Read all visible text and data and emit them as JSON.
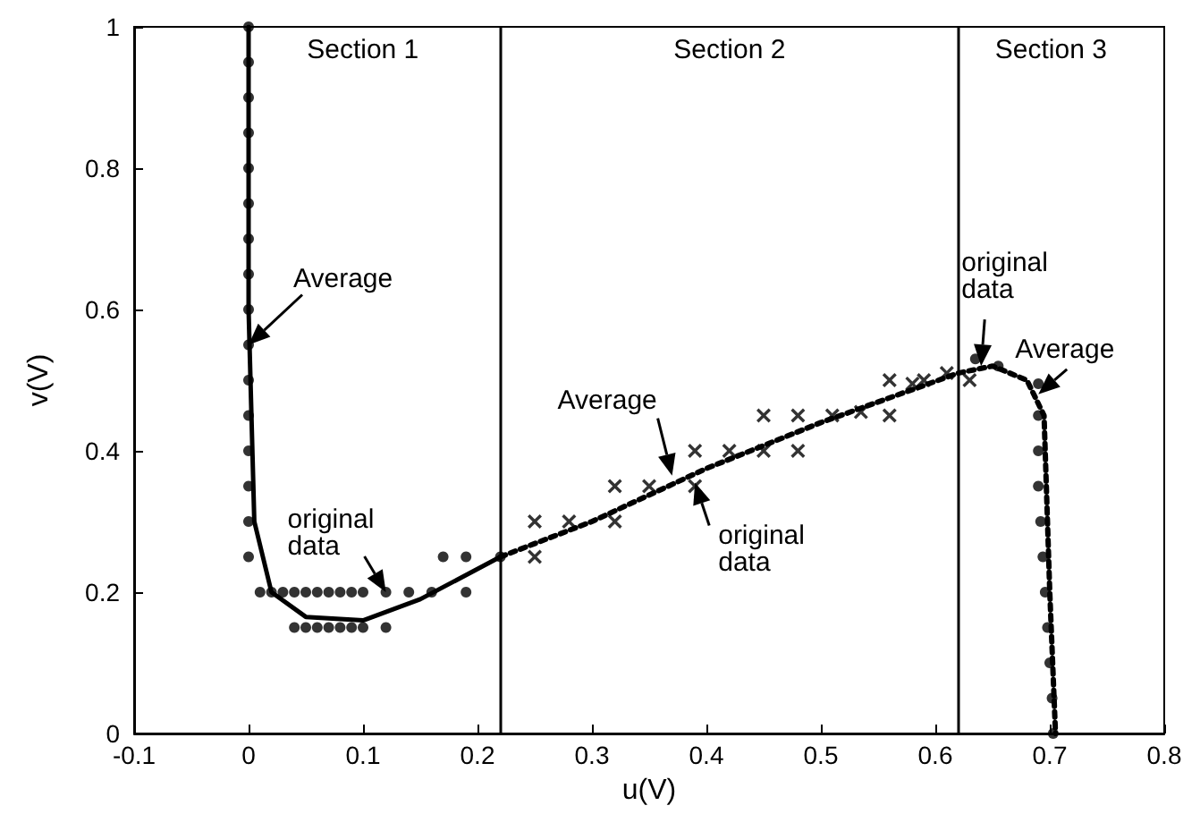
{
  "chart_data": {
    "type": "scatter",
    "xlabel": "u(V)",
    "ylabel": "v(V)",
    "xlim": [
      -0.1,
      0.8
    ],
    "xticks": [
      -0.1,
      0,
      0.1,
      0.2,
      0.3,
      0.4,
      0.5,
      0.6,
      0.7,
      0.8
    ],
    "ylim": [
      0,
      1
    ],
    "yticks": [
      0,
      0.2,
      0.4,
      0.6,
      0.8,
      1
    ],
    "grid": false,
    "series": [
      {
        "marker": "circle",
        "color": "#000000",
        "x": [
          0,
          0,
          0,
          0,
          0,
          0,
          0,
          0,
          0,
          0,
          0,
          0,
          0,
          0,
          0,
          0,
          0.01,
          0.02,
          0.03,
          0.04,
          0.05,
          0.06,
          0.07,
          0.08,
          0.09,
          0.1,
          0.12,
          0.14,
          0.16,
          0.19,
          0.04,
          0.05,
          0.06,
          0.07,
          0.08,
          0.09,
          0.1,
          0.12,
          0.17,
          0.19,
          0.22
        ],
        "values": [
          1,
          0.95,
          0.9,
          0.85,
          0.8,
          0.75,
          0.7,
          0.65,
          0.6,
          0.55,
          0.5,
          0.45,
          0.4,
          0.35,
          0.3,
          0.25,
          0.2,
          0.2,
          0.2,
          0.2,
          0.2,
          0.2,
          0.2,
          0.2,
          0.2,
          0.2,
          0.2,
          0.2,
          0.2,
          0.2,
          0.15,
          0.15,
          0.15,
          0.15,
          0.15,
          0.15,
          0.15,
          0.15,
          0.25,
          0.25,
          0.25
        ]
      },
      {
        "type": "line",
        "marker": "none",
        "line_style": "solid",
        "color": "#000000",
        "x": [
          0,
          0,
          0.005,
          0.02,
          0.05,
          0.1,
          0.15,
          0.22
        ],
        "values": [
          1,
          0.6,
          0.3,
          0.2,
          0.165,
          0.16,
          0.19,
          0.25
        ]
      },
      {
        "marker": "cross",
        "color": "#000000",
        "x": [
          0.25,
          0.25,
          0.28,
          0.32,
          0.32,
          0.35,
          0.39,
          0.39,
          0.42,
          0.45,
          0.45,
          0.48,
          0.48,
          0.51,
          0.535,
          0.56,
          0.56,
          0.58,
          0.59,
          0.61,
          0.63
        ],
        "values": [
          0.3,
          0.25,
          0.3,
          0.35,
          0.3,
          0.35,
          0.4,
          0.35,
          0.4,
          0.45,
          0.4,
          0.45,
          0.4,
          0.45,
          0.455,
          0.45,
          0.5,
          0.495,
          0.5,
          0.51,
          0.5
        ]
      },
      {
        "marker": "circle",
        "color": "#000000",
        "x": [
          0.635,
          0.655,
          0.69,
          0.69,
          0.69,
          0.69,
          0.692,
          0.694,
          0.696,
          0.698,
          0.7,
          0.702,
          0.703
        ],
        "values": [
          0.53,
          0.52,
          0.495,
          0.45,
          0.4,
          0.35,
          0.3,
          0.25,
          0.2,
          0.15,
          0.1,
          0.05,
          0
        ]
      },
      {
        "type": "line",
        "marker": "none",
        "line_style": "dotted",
        "color": "#000000",
        "x": [
          0.22,
          0.3,
          0.4,
          0.5,
          0.62,
          0.65,
          0.68,
          0.695,
          0.7,
          0.705
        ],
        "values": [
          0.25,
          0.3,
          0.375,
          0.44,
          0.51,
          0.52,
          0.5,
          0.45,
          0.2,
          0
        ]
      }
    ],
    "ref_lines": [
      {
        "axis": "x",
        "value": 0.22,
        "color": "#000000",
        "line_style": "solid"
      },
      {
        "axis": "x",
        "value": 0.62,
        "color": "#000000",
        "line_style": "solid"
      }
    ],
    "annotations": [
      "Section 1",
      "Section 2",
      "Section 3",
      {
        "text": "Average",
        "x": 0,
        "y": 0.55
      },
      {
        "text": "original data",
        "x": 0.12,
        "y": 0.2
      },
      {
        "text": "Average",
        "x": 0.37,
        "y": 0.365
      },
      {
        "text": "original data",
        "x": 0.39,
        "y": 0.355
      },
      {
        "text": "original data",
        "x": 0.64,
        "y": 0.52
      },
      {
        "text": "Average",
        "x": 0.69,
        "y": 0.48
      }
    ]
  }
}
